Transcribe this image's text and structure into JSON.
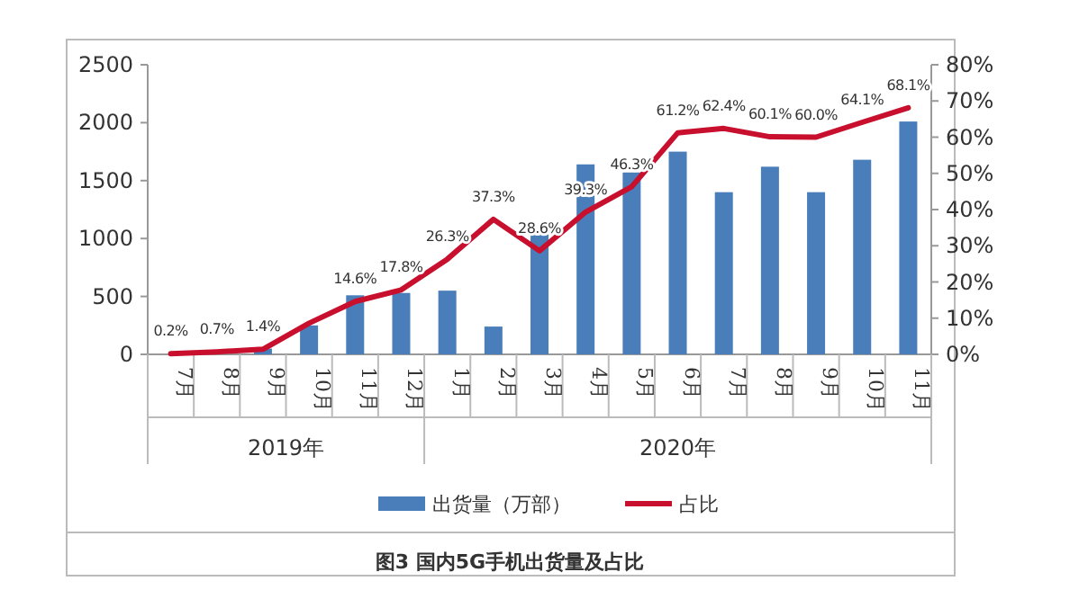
{
  "chart_data": {
    "type": "bar",
    "categories": [
      "7月",
      "8月",
      "9月",
      "10月",
      "11月",
      "12月",
      "1月",
      "2月",
      "3月",
      "4月",
      "5月",
      "6月",
      "7月",
      "8月",
      "9月",
      "10月",
      "11月"
    ],
    "series": [
      {
        "name": "出货量（万部）",
        "color": "#4a7ebb",
        "values": [
          null,
          null,
          50,
          250,
          510,
          530,
          550,
          240,
          1040,
          1640,
          1570,
          1750,
          1400,
          1620,
          1400,
          1680,
          2010
        ]
      },
      {
        "name": "占比",
        "type": "line",
        "axis": "y2",
        "color": "#c8102e",
        "values": [
          0.2,
          0.7,
          1.4,
          8.6,
          14.6,
          17.8,
          26.3,
          37.3,
          28.6,
          39.3,
          46.3,
          61.2,
          62.4,
          60.1,
          60.0,
          64.1,
          68.1
        ],
        "value_labels": [
          "0.2%",
          "0.7%",
          "1.4%",
          null,
          "14.6%",
          "17.8%",
          "26.3%",
          "37.3%",
          "28.6%",
          "39.3%",
          "46.3%",
          "61.2%",
          "62.4%",
          "60.1%",
          "60.0%",
          "64.1%",
          "68.1%"
        ]
      }
    ],
    "ylim": [
      0,
      2500
    ],
    "yticks": [
      0,
      500,
      1000,
      1500,
      2000,
      2500
    ],
    "y2lim": [
      0,
      80
    ],
    "y2ticks": [
      {
        "value": 0,
        "label": "0%"
      },
      {
        "value": 10,
        "label": "10%"
      },
      {
        "value": 20,
        "label": "20%"
      },
      {
        "value": 30,
        "label": "30%"
      },
      {
        "value": 40,
        "label": "40%"
      },
      {
        "value": 50,
        "label": "50%"
      },
      {
        "value": 60,
        "label": "60%"
      },
      {
        "value": 70,
        "label": "70%"
      },
      {
        "value": 80,
        "label": "80%"
      }
    ],
    "legend": "bottom",
    "marker": "none",
    "line_style": "solid",
    "annotations": [
      "2019年",
      "2020年",
      "图3  国内5G手机出货量及占比"
    ]
  }
}
